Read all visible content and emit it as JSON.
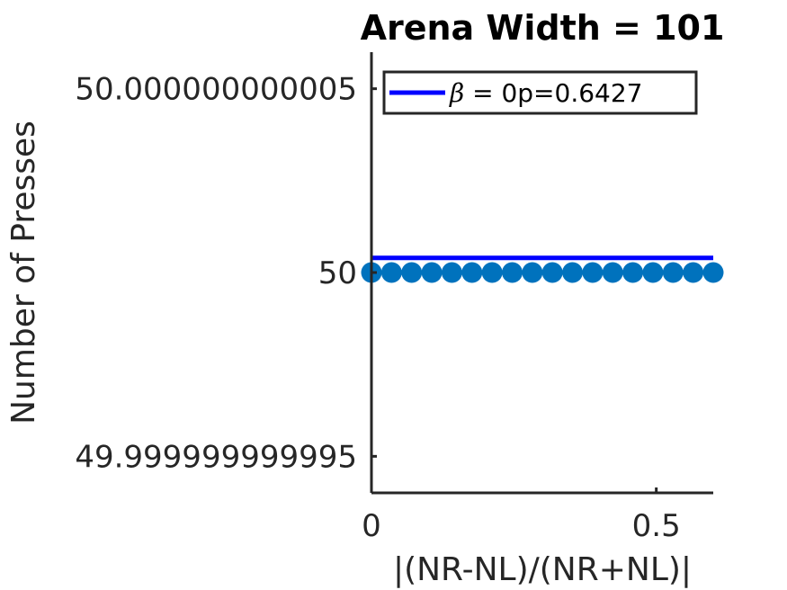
{
  "chart_data": {
    "type": "line",
    "title": "Arena Width =  101",
    "xlabel": "|(NR-NL)/(NR+NL)|",
    "ylabel": "Number of Presses",
    "xlim": [
      0,
      0.6
    ],
    "ylim": [
      49.999999999994,
      50.000000000006
    ],
    "x_ticks": [
      0,
      0.5
    ],
    "x_tick_labels": [
      "0",
      "0.5"
    ],
    "y_ticks": [
      49.999999999995,
      50,
      50.000000000005
    ],
    "y_tick_labels": [
      "49.999999999995",
      "50",
      "50.000000000005"
    ],
    "grid": false,
    "legend_position": "top-right",
    "series": [
      {
        "name": "β =  0p=0.6427",
        "kind": "line",
        "color": "#0000ff",
        "x": [
          0,
          0.6
        ],
        "y": [
          50.0000000000004,
          50.0000000000004
        ]
      },
      {
        "kind": "scatter",
        "color": "#0072bd",
        "x": [
          0,
          0.0353,
          0.0706,
          0.1059,
          0.1412,
          0.1765,
          0.2118,
          0.2471,
          0.2824,
          0.3176,
          0.3529,
          0.3882,
          0.4235,
          0.4588,
          0.4941,
          0.5294,
          0.5647,
          0.6
        ],
        "y": [
          50,
          50,
          50,
          50,
          50,
          50,
          50,
          50,
          50,
          50,
          50,
          50,
          50,
          50,
          50,
          50,
          50,
          50
        ]
      }
    ],
    "legend_label_prefix": "β =  0",
    "legend_label_suffix": "p=0.6427"
  }
}
